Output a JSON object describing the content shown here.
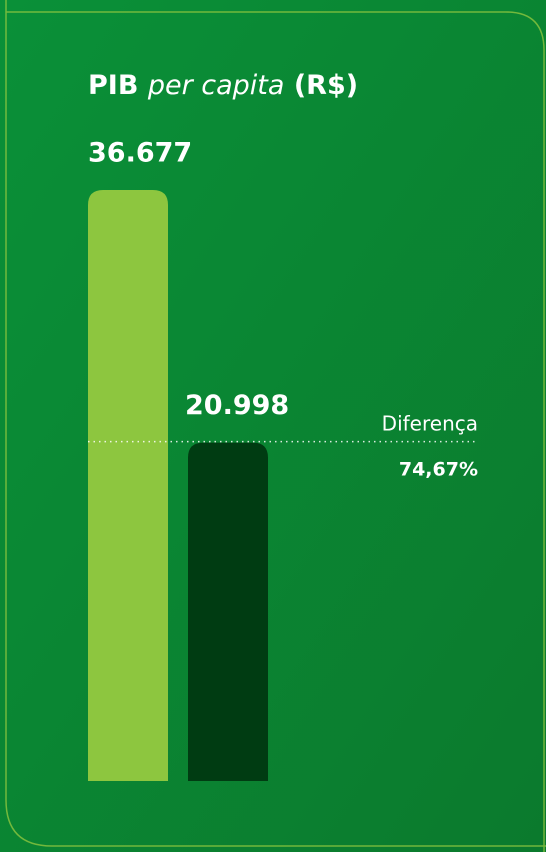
{
  "chart_data": {
    "type": "bar",
    "title": [
      "PIB",
      "per capita",
      "(R$)"
    ],
    "categories": [
      null,
      null
    ],
    "values": [
      36677,
      20998
    ],
    "value_labels": [
      "36.677",
      "20.998"
    ],
    "colors": [
      "#8dc63f",
      "#003c12"
    ],
    "ylim": [
      0,
      36677
    ],
    "annotations": [
      "Diferença",
      "74,67%"
    ]
  }
}
